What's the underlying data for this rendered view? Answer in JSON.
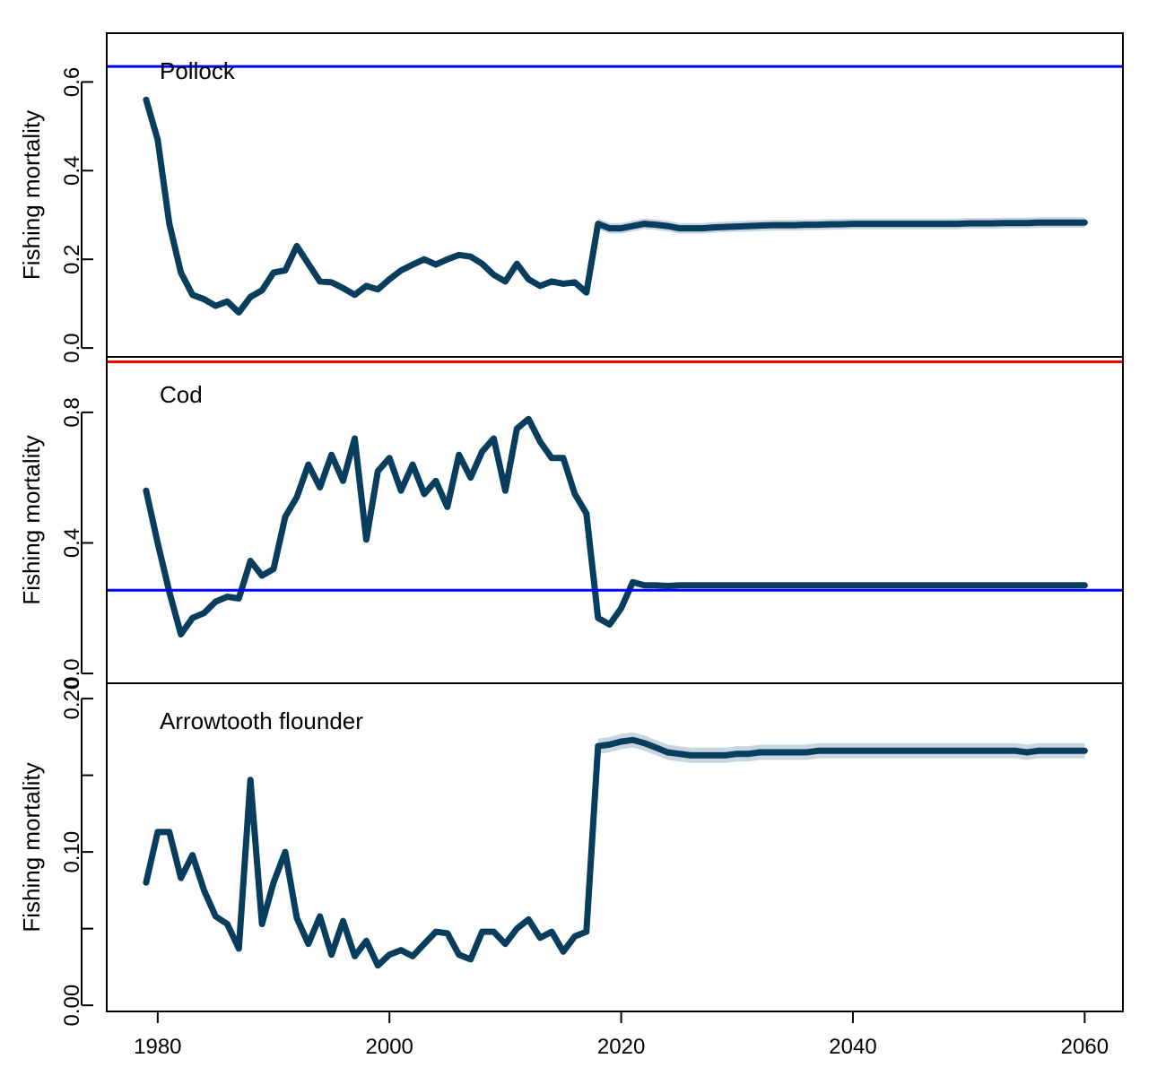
{
  "chart_data": [
    {
      "type": "line",
      "title": "Pollock",
      "ylabel": "Fishing mortality",
      "ylim": [
        -0.02,
        0.71
      ],
      "yticks": [
        0.0,
        0.2,
        0.4,
        0.6
      ],
      "ytick_labels": [
        "0.0",
        "0.2",
        "0.4",
        "0.6"
      ],
      "reference_lines": [
        {
          "y": 0.635,
          "color": "#0000ff"
        }
      ],
      "series": [
        {
          "x": [
            1979,
            1980,
            1981,
            1982,
            1983,
            1984,
            1985,
            1986,
            1987,
            1988,
            1989,
            1990,
            1991,
            1992,
            1993,
            1994,
            1995,
            1996,
            1997,
            1998,
            1999,
            2000,
            2001,
            2002,
            2003,
            2004,
            2005,
            2006,
            2007,
            2008,
            2009,
            2010,
            2011,
            2012,
            2013,
            2014,
            2015,
            2016,
            2017,
            2018,
            2019,
            2020,
            2021,
            2022,
            2023,
            2024,
            2025,
            2026,
            2027,
            2028,
            2029,
            2030,
            2031,
            2032,
            2033,
            2034,
            2035,
            2036,
            2037,
            2038,
            2039,
            2040,
            2041,
            2042,
            2043,
            2044,
            2045,
            2046,
            2047,
            2048,
            2049,
            2050,
            2051,
            2052,
            2053,
            2054,
            2055,
            2056,
            2057,
            2058,
            2059,
            2060
          ],
          "y": [
            0.56,
            0.47,
            0.28,
            0.17,
            0.12,
            0.11,
            0.095,
            0.105,
            0.08,
            0.115,
            0.13,
            0.17,
            0.175,
            0.23,
            0.19,
            0.15,
            0.148,
            0.135,
            0.12,
            0.14,
            0.132,
            0.155,
            0.175,
            0.188,
            0.2,
            0.188,
            0.2,
            0.21,
            0.206,
            0.19,
            0.165,
            0.15,
            0.19,
            0.155,
            0.14,
            0.15,
            0.145,
            0.148,
            0.125,
            0.28,
            0.27,
            0.27,
            0.275,
            0.28,
            0.278,
            0.275,
            0.27,
            0.27,
            0.27,
            0.272,
            0.273,
            0.274,
            0.275,
            0.276,
            0.277,
            0.277,
            0.277,
            0.278,
            0.278,
            0.279,
            0.279,
            0.28,
            0.28,
            0.28,
            0.28,
            0.28,
            0.28,
            0.28,
            0.28,
            0.28,
            0.28,
            0.281,
            0.281,
            0.281,
            0.282,
            0.282,
            0.282,
            0.283,
            0.283,
            0.283,
            0.283,
            0.283
          ],
          "band_start": 2018,
          "band_halfwidth": 0.012,
          "color": "#083d5e"
        }
      ]
    },
    {
      "type": "line",
      "title": "Cod",
      "ylabel": "Fishing mortality",
      "ylim": [
        -0.03,
        0.97
      ],
      "yticks": [
        0.0,
        0.4,
        0.8
      ],
      "ytick_labels": [
        "0.0",
        "0.4",
        "0.8"
      ],
      "reference_lines": [
        {
          "y": 0.955,
          "color": "#ff0000"
        },
        {
          "y": 0.255,
          "color": "#0000ff"
        }
      ],
      "series": [
        {
          "x": [
            1979,
            1980,
            1981,
            1982,
            1983,
            1984,
            1985,
            1986,
            1987,
            1988,
            1989,
            1990,
            1991,
            1992,
            1993,
            1994,
            1995,
            1996,
            1997,
            1998,
            1999,
            2000,
            2001,
            2002,
            2003,
            2004,
            2005,
            2006,
            2007,
            2008,
            2009,
            2010,
            2011,
            2012,
            2013,
            2014,
            2015,
            2016,
            2017,
            2018,
            2019,
            2020,
            2021,
            2022,
            2023,
            2024,
            2025,
            2026,
            2027,
            2028,
            2029,
            2030,
            2031,
            2032,
            2033,
            2034,
            2035,
            2036,
            2037,
            2038,
            2039,
            2040,
            2041,
            2042,
            2043,
            2044,
            2045,
            2046,
            2047,
            2048,
            2049,
            2050,
            2051,
            2052,
            2053,
            2054,
            2055,
            2056,
            2057,
            2058,
            2059,
            2060
          ],
          "y": [
            0.56,
            0.4,
            0.25,
            0.12,
            0.17,
            0.185,
            0.22,
            0.235,
            0.23,
            0.345,
            0.3,
            0.32,
            0.48,
            0.54,
            0.64,
            0.57,
            0.67,
            0.59,
            0.72,
            0.41,
            0.62,
            0.66,
            0.56,
            0.64,
            0.55,
            0.59,
            0.51,
            0.67,
            0.6,
            0.68,
            0.72,
            0.56,
            0.75,
            0.78,
            0.71,
            0.66,
            0.66,
            0.55,
            0.49,
            0.17,
            0.15,
            0.2,
            0.28,
            0.27,
            0.27,
            0.268,
            0.27,
            0.27,
            0.27,
            0.27,
            0.27,
            0.27,
            0.27,
            0.27,
            0.27,
            0.27,
            0.27,
            0.27,
            0.27,
            0.27,
            0.27,
            0.27,
            0.27,
            0.27,
            0.27,
            0.27,
            0.27,
            0.27,
            0.27,
            0.27,
            0.27,
            0.27,
            0.27,
            0.27,
            0.27,
            0.27,
            0.27,
            0.27,
            0.27,
            0.27,
            0.27,
            0.27
          ],
          "band_start": 2018,
          "band_halfwidth": 0.006,
          "color": "#083d5e"
        }
      ]
    },
    {
      "type": "line",
      "title": "Arrowtooth flounder",
      "ylabel": "Fishing mortality",
      "ylim": [
        -0.004,
        0.21
      ],
      "yticks": [
        0.0,
        0.05,
        0.1,
        0.15,
        0.2
      ],
      "ytick_labels": [
        "0.00",
        "",
        "0.10",
        "",
        "0.20"
      ],
      "reference_lines": [],
      "series": [
        {
          "x": [
            1979,
            1980,
            1981,
            1982,
            1983,
            1984,
            1985,
            1986,
            1987,
            1988,
            1989,
            1990,
            1991,
            1992,
            1993,
            1994,
            1995,
            1996,
            1997,
            1998,
            1999,
            2000,
            2001,
            2002,
            2003,
            2004,
            2005,
            2006,
            2007,
            2008,
            2009,
            2010,
            2011,
            2012,
            2013,
            2014,
            2015,
            2016,
            2017,
            2018,
            2019,
            2020,
            2021,
            2022,
            2023,
            2024,
            2025,
            2026,
            2027,
            2028,
            2029,
            2030,
            2031,
            2032,
            2033,
            2034,
            2035,
            2036,
            2037,
            2038,
            2039,
            2040,
            2041,
            2042,
            2043,
            2044,
            2045,
            2046,
            2047,
            2048,
            2049,
            2050,
            2051,
            2052,
            2053,
            2054,
            2055,
            2056,
            2057,
            2058,
            2059,
            2060
          ],
          "y": [
            0.08,
            0.113,
            0.113,
            0.083,
            0.098,
            0.075,
            0.058,
            0.053,
            0.037,
            0.147,
            0.053,
            0.08,
            0.1,
            0.057,
            0.04,
            0.058,
            0.033,
            0.055,
            0.032,
            0.042,
            0.026,
            0.033,
            0.036,
            0.032,
            0.04,
            0.048,
            0.047,
            0.033,
            0.03,
            0.048,
            0.048,
            0.04,
            0.05,
            0.056,
            0.044,
            0.048,
            0.035,
            0.045,
            0.048,
            0.169,
            0.17,
            0.172,
            0.173,
            0.171,
            0.168,
            0.165,
            0.164,
            0.163,
            0.163,
            0.163,
            0.163,
            0.164,
            0.164,
            0.165,
            0.165,
            0.165,
            0.165,
            0.165,
            0.166,
            0.166,
            0.166,
            0.166,
            0.166,
            0.166,
            0.166,
            0.166,
            0.166,
            0.166,
            0.166,
            0.166,
            0.166,
            0.166,
            0.166,
            0.166,
            0.166,
            0.166,
            0.165,
            0.166,
            0.166,
            0.166,
            0.166,
            0.166
          ],
          "band_start": 2018,
          "band_halfwidth": 0.005,
          "color": "#083d5e"
        }
      ]
    }
  ],
  "x_axis": {
    "xlim": [
      1975.6,
      2063.3
    ],
    "ticks": [
      1980,
      2000,
      2020,
      2040,
      2060
    ],
    "tick_labels": [
      "1980",
      "2000",
      "2020",
      "2040",
      "2060"
    ]
  },
  "colors": {
    "line": "#083d5e",
    "band": "#c8d6e2",
    "frame": "#000000"
  }
}
